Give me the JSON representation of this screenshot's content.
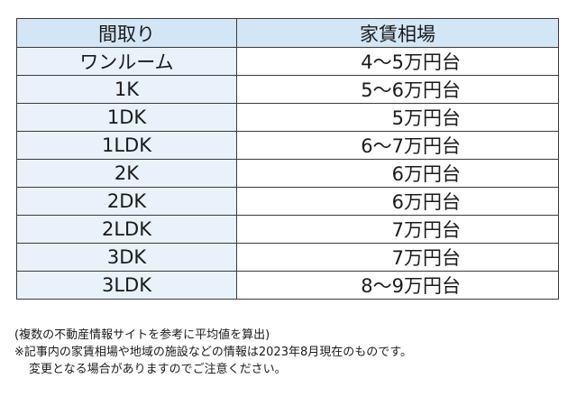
{
  "table": {
    "header": {
      "layout": "間取り",
      "rent": "家賃相場"
    },
    "rows": [
      {
        "layout": "ワンルーム",
        "rent": "4～5万円台"
      },
      {
        "layout": "1K",
        "rent": "5～6万円台"
      },
      {
        "layout": "1DK",
        "rent": "5万円台"
      },
      {
        "layout": "1LDK",
        "rent": "6～7万円台"
      },
      {
        "layout": "2K",
        "rent": "6万円台"
      },
      {
        "layout": "2DK",
        "rent": "6万円台"
      },
      {
        "layout": "2LDK",
        "rent": "7万円台"
      },
      {
        "layout": "3DK",
        "rent": "7万円台"
      },
      {
        "layout": "3LDK",
        "rent": "8～9万円台"
      }
    ]
  },
  "notes": {
    "line1": "(複数の不動産情報サイトを参考に平均値を算出)",
    "line2": "※記事内の家賃相場や地域の施設などの情報は2023年8月現在のものです。",
    "line3": "変更となる場合がありますのでご注意ください。"
  }
}
